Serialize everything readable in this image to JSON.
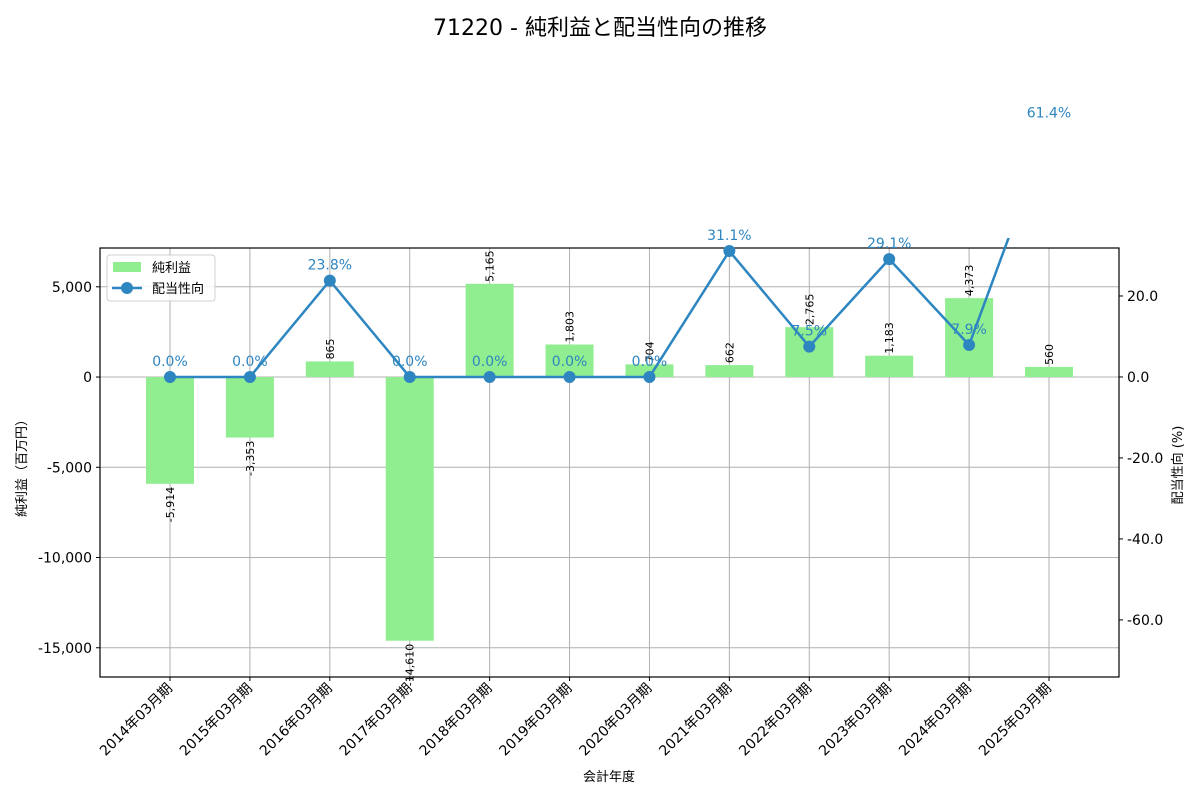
{
  "title": "71220 - 純利益と配当性向の推移",
  "colors": {
    "bar": "#90ee90",
    "line": "#2e86c1",
    "grid": "#b0b0b0",
    "axis": "#000000"
  },
  "chart_data": {
    "type": "bar+line",
    "title": "71220 - 純利益と配当性向の推移",
    "xlabel": "会計年度",
    "ylabel": "純利益（百万円）",
    "y2label": "配当性向 (%)",
    "categories": [
      "2014年03月期",
      "2015年03月期",
      "2016年03月期",
      "2017年03月期",
      "2018年03月期",
      "2019年03月期",
      "2020年03月期",
      "2021年03月期",
      "2022年03月期",
      "2023年03月期",
      "2024年03月期",
      "2025年03月期"
    ],
    "series": [
      {
        "name": "純利益",
        "type": "bar",
        "axis": "left",
        "values": [
          -5914,
          -3353,
          865,
          -14610,
          5165,
          1803,
          704,
          662,
          2765,
          1183,
          4373,
          560
        ],
        "labels": [
          "-5,914",
          "-3,353",
          "865",
          "-14,610",
          "5,165",
          "1,803",
          "704",
          "662",
          "2,765",
          "1,183",
          "4,373",
          "560"
        ]
      },
      {
        "name": "配当性向",
        "type": "line",
        "axis": "right",
        "values": [
          0.0,
          0.0,
          23.8,
          0.0,
          0.0,
          0.0,
          0.0,
          31.1,
          7.5,
          29.1,
          7.9,
          61.4
        ],
        "labels": [
          "0.0%",
          "0.0%",
          "23.8%",
          "0.0%",
          "0.0%",
          "0.0%",
          "0.0%",
          "31.1%",
          "7.5%",
          "29.1%",
          "7.9%",
          "61.4%"
        ]
      }
    ],
    "ylim": [
      -16620,
      7150
    ],
    "y2lim": [
      -74.1,
      31.85
    ],
    "yticks": [
      5000,
      0,
      -5000,
      -10000,
      -15000
    ],
    "ytick_labels": [
      "5,000",
      "0",
      "-5,000",
      "-10,000",
      "-15,000"
    ],
    "y2ticks": [
      20,
      0,
      -20,
      -40,
      -60
    ],
    "y2tick_labels": [
      "20.0",
      "0.0",
      "-20.0",
      "-40.0",
      "-60.0"
    ],
    "grid": true,
    "legend": {
      "position": "upper left",
      "entries": [
        "純利益",
        "配当性向"
      ]
    }
  }
}
